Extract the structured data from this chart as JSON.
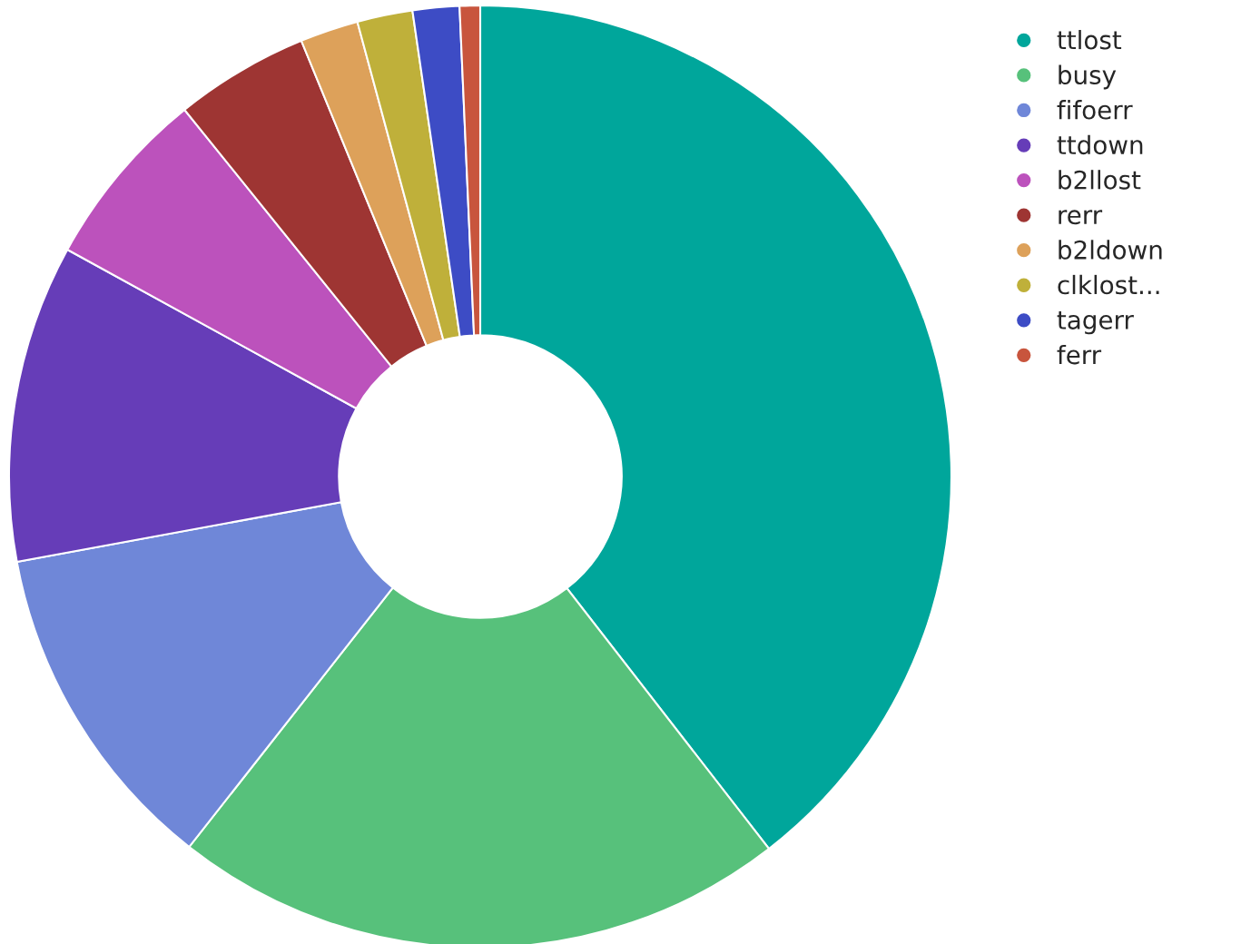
{
  "chart_data": {
    "type": "donut",
    "categories": [
      "ttlost",
      "busy",
      "fifoerr",
      "ttdown",
      "b2llost",
      "rerr",
      "b2ldown",
      "clklost...",
      "tagerr",
      "ferr"
    ],
    "values": [
      39.5,
      21.1,
      11.5,
      10.9,
      6.2,
      4.6,
      2.0,
      1.9,
      1.6,
      0.7
    ],
    "colors": [
      "#00a69b",
      "#57c17b",
      "#6f87d8",
      "#663db8",
      "#bc52bc",
      "#9e3533",
      "#dda15a",
      "#bfb03a",
      "#3d4cc5",
      "#c8553d"
    ],
    "legend": "top right"
  }
}
